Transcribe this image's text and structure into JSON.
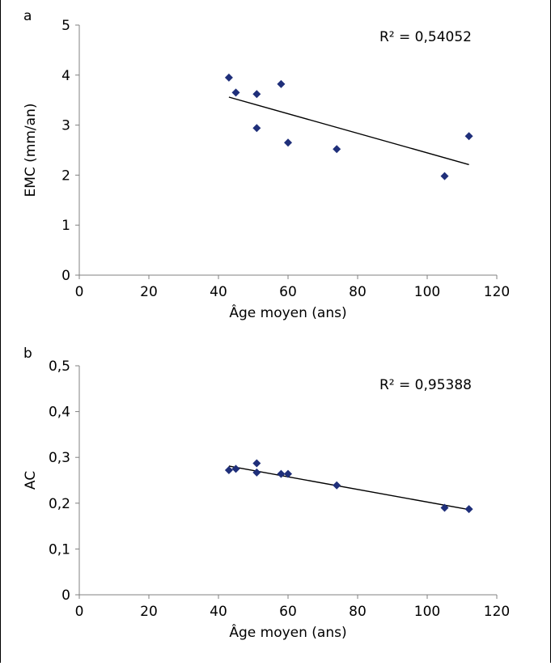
{
  "chart_data": [
    {
      "type": "scatter",
      "panel_label": "a",
      "xlabel": "Âge moyen (ans)",
      "ylabel": "EMC (mm/an)",
      "xlim": [
        0,
        120
      ],
      "ylim": [
        0,
        5
      ],
      "xticks": [
        0,
        20,
        40,
        60,
        80,
        100,
        120
      ],
      "yticks": [
        0,
        1,
        2,
        3,
        4,
        5
      ],
      "ytick_labels": [
        "0",
        "1",
        "2",
        "3",
        "4",
        "5"
      ],
      "annotation": "R² = 0,54052",
      "marker_color": "#1f2f7a",
      "series": [
        {
          "x": [
            43,
            45,
            51,
            51,
            58,
            60,
            74,
            105,
            112
          ],
          "y": [
            3.95,
            3.65,
            3.62,
            2.94,
            3.82,
            2.65,
            2.52,
            1.98,
            2.78
          ]
        }
      ],
      "trendline": {
        "type": "linear",
        "x": [
          43,
          112
        ],
        "y": [
          3.56,
          2.21
        ]
      }
    },
    {
      "type": "scatter",
      "panel_label": "b",
      "xlabel": "Âge moyen (ans)",
      "ylabel": "AC",
      "xlim": [
        0,
        120
      ],
      "ylim": [
        0,
        0.5
      ],
      "xticks": [
        0,
        20,
        40,
        60,
        80,
        100,
        120
      ],
      "yticks": [
        0,
        0.1,
        0.2,
        0.3,
        0.4,
        0.5
      ],
      "ytick_labels": [
        "0",
        "0,1",
        "0,2",
        "0,3",
        "0,4",
        "0,5"
      ],
      "annotation": "R² = 0,95388",
      "marker_color": "#1f2f7a",
      "series": [
        {
          "x": [
            43,
            45,
            51,
            51,
            58,
            60,
            74,
            105,
            112
          ],
          "y": [
            0.272,
            0.275,
            0.287,
            0.267,
            0.264,
            0.264,
            0.239,
            0.19,
            0.187
          ]
        }
      ],
      "trendline": {
        "type": "linear",
        "x": [
          43,
          112
        ],
        "y": [
          0.281,
          0.186
        ]
      }
    }
  ]
}
